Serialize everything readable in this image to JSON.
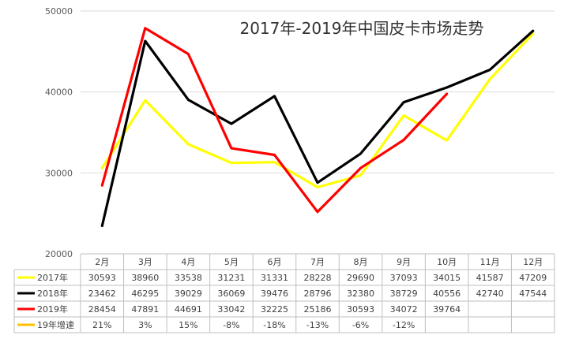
{
  "chart_data": {
    "type": "line",
    "title": "2017年-2019年中国皮卡市场走势",
    "categories": [
      "2月",
      "3月",
      "4月",
      "5月",
      "6月",
      "7月",
      "8月",
      "9月",
      "10月",
      "11月",
      "12月"
    ],
    "ylim": [
      20000,
      50000
    ],
    "yticks": [
      20000,
      30000,
      40000,
      50000
    ],
    "ytick_labels": [
      "20000",
      "30000",
      "40000",
      "50000"
    ],
    "grid": true,
    "legend_position": "data-table-left",
    "series": [
      {
        "name": "2017年",
        "color": "#ffff00",
        "values": [
          30593,
          38960,
          33538,
          31231,
          31331,
          28228,
          29690,
          37093,
          34015,
          41587,
          47209
        ],
        "labels": [
          "30593",
          "38960",
          "33538",
          "31231",
          "31331",
          "28228",
          "29690",
          "37093",
          "34015",
          "41587",
          "47209"
        ]
      },
      {
        "name": "2018年",
        "color": "#000000",
        "values": [
          23462,
          46295,
          39029,
          36069,
          39476,
          28796,
          32380,
          38729,
          40556,
          42740,
          47544
        ],
        "labels": [
          "23462",
          "46295",
          "39029",
          "36069",
          "39476",
          "28796",
          "32380",
          "38729",
          "40556",
          "42740",
          "47544"
        ]
      },
      {
        "name": "2019年",
        "color": "#ff0000",
        "values": [
          28454,
          47891,
          44691,
          33042,
          32225,
          25186,
          30593,
          34072,
          39764,
          null,
          null
        ],
        "labels": [
          "28454",
          "47891",
          "44691",
          "33042",
          "32225",
          "25186",
          "30593",
          "34072",
          "39764",
          "",
          ""
        ]
      }
    ],
    "table_extra_row": {
      "name": "19年增速",
      "color": "#ffc000",
      "values": [
        "21%",
        "3%",
        "15%",
        "-8%",
        "-18%",
        "-13%",
        "-6%",
        "-12%",
        "",
        "",
        ""
      ]
    }
  }
}
